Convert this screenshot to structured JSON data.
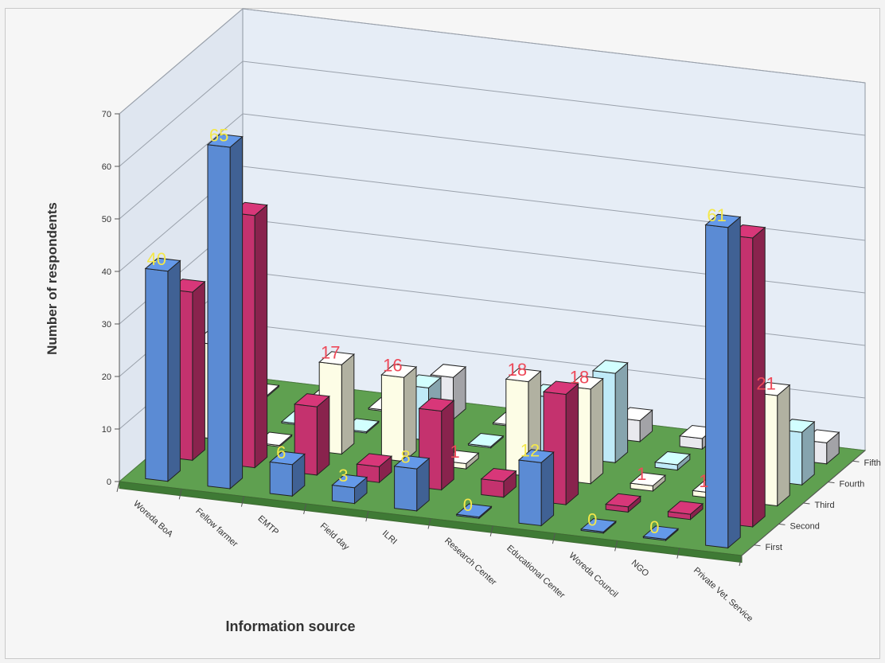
{
  "chart_data": {
    "type": "bar",
    "subtype": "3d-clustered-column",
    "title": "",
    "xlabel": "Information source",
    "ylabel": "Number of respondents",
    "ylim": [
      0,
      70
    ],
    "yticks": [
      0,
      10,
      20,
      30,
      40,
      50,
      60,
      70
    ],
    "grid": true,
    "legend": "none",
    "depth_axis_labels": [
      "First",
      "Second",
      "Third",
      "Fourth",
      "Fifth"
    ],
    "categories": [
      "Woreda BoA",
      "Fellow farmer",
      "EMTP",
      "Field day",
      "ILRI",
      "Research Center",
      "Educational Center",
      "Woreda Council",
      "NGO",
      "Private Vet. Service"
    ],
    "series": [
      {
        "name": "First",
        "color": "#5b8bd4",
        "values": [
          40,
          65,
          6,
          3,
          8,
          0,
          12,
          0,
          0,
          61
        ]
      },
      {
        "name": "Second",
        "color": "#c4326e",
        "values": [
          32,
          48,
          13,
          3,
          15,
          3,
          21,
          1,
          1,
          55
        ]
      },
      {
        "name": "Third",
        "color": "#fdfde6",
        "values": [
          18,
          0,
          17,
          16,
          1,
          18,
          18,
          1,
          1,
          21
        ]
      },
      {
        "name": "Fourth",
        "color": "#bfeaf8",
        "values": [
          0,
          0,
          0,
          10,
          0,
          11,
          17,
          1,
          1,
          10
        ]
      },
      {
        "name": "Fifth",
        "color": "#e9e9ee",
        "values": [
          0,
          0,
          0,
          8,
          0,
          6,
          4,
          2,
          0,
          4
        ]
      }
    ],
    "data_labels": [
      {
        "category": "Woreda BoA",
        "series": "First",
        "text": "40",
        "color": "#f4e84a"
      },
      {
        "category": "Fellow farmer",
        "series": "First",
        "text": "65",
        "color": "#f4e84a"
      },
      {
        "category": "EMTP",
        "series": "First",
        "text": "6",
        "color": "#f4e84a"
      },
      {
        "category": "Field day",
        "series": "First",
        "text": "3",
        "color": "#f4e84a"
      },
      {
        "category": "ILRI",
        "series": "First",
        "text": "8",
        "color": "#f4e84a"
      },
      {
        "category": "Research Center",
        "series": "First",
        "text": "0",
        "color": "#f4e84a"
      },
      {
        "category": "Educational Center",
        "series": "First",
        "text": "12",
        "color": "#f4e84a"
      },
      {
        "category": "Woreda Council",
        "series": "First",
        "text": "0",
        "color": "#f4e84a"
      },
      {
        "category": "NGO",
        "series": "First",
        "text": "0",
        "color": "#f4e84a"
      },
      {
        "category": "Private Vet. Service",
        "series": "First",
        "text": "61",
        "color": "#f4e84a"
      },
      {
        "category": "EMTP",
        "series": "Third",
        "text": "17",
        "color": "#ee4a5a"
      },
      {
        "category": "Field day",
        "series": "Third",
        "text": "16",
        "color": "#ee4a5a"
      },
      {
        "category": "ILRI",
        "series": "Third",
        "text": "1",
        "color": "#ee4a5a"
      },
      {
        "category": "Research Center",
        "series": "Third",
        "text": "18",
        "color": "#ee4a5a"
      },
      {
        "category": "Educational Center",
        "series": "Third",
        "text": "18",
        "color": "#ee4a5a"
      },
      {
        "category": "Woreda Council",
        "series": "Third",
        "text": "1",
        "color": "#ee4a5a"
      },
      {
        "category": "NGO",
        "series": "Third",
        "text": "1",
        "color": "#ee4a5a"
      },
      {
        "category": "Private Vet. Service",
        "series": "Third",
        "text": "21",
        "color": "#ee4a5a"
      }
    ],
    "colors": {
      "floor": "#5fa050",
      "walls": "#e6edf6",
      "grid": "#9aa1ab"
    }
  }
}
